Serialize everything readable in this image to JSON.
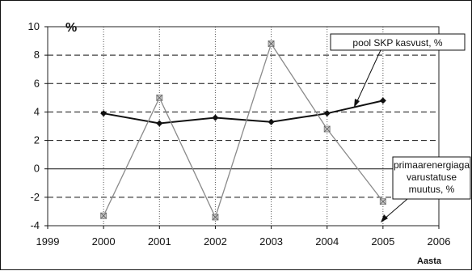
{
  "chart_data": {
    "type": "line",
    "y_unit_label": "%",
    "xlabel": "Aasta",
    "x_ticks": [
      "1999",
      "2000",
      "2001",
      "2002",
      "2003",
      "2004",
      "2005",
      "2006"
    ],
    "y_ticks": [
      "10",
      "8",
      "6",
      "4",
      "2",
      "0",
      "-2",
      "-4"
    ],
    "xlim": [
      1999,
      2006
    ],
    "ylim": [
      -4,
      10
    ],
    "grid": true,
    "series": [
      {
        "name": "pool SKP kasvust, %",
        "x": [
          2000,
          2001,
          2002,
          2003,
          2004,
          2005
        ],
        "values": [
          3.9,
          3.2,
          3.6,
          3.3,
          3.9,
          4.8
        ],
        "color": "#111111",
        "marker": "diamond"
      },
      {
        "name": "primaarenergiaga varustatuse muutus, %",
        "name_lines": [
          "primaarenergiaga",
          "varustatuse",
          "muutus, %"
        ],
        "x": [
          2000,
          2001,
          2002,
          2003,
          2004,
          2005
        ],
        "values": [
          -3.3,
          5.0,
          -3.4,
          8.8,
          2.8,
          -2.3
        ],
        "color": "#8a8a8a",
        "marker": "square"
      }
    ]
  }
}
